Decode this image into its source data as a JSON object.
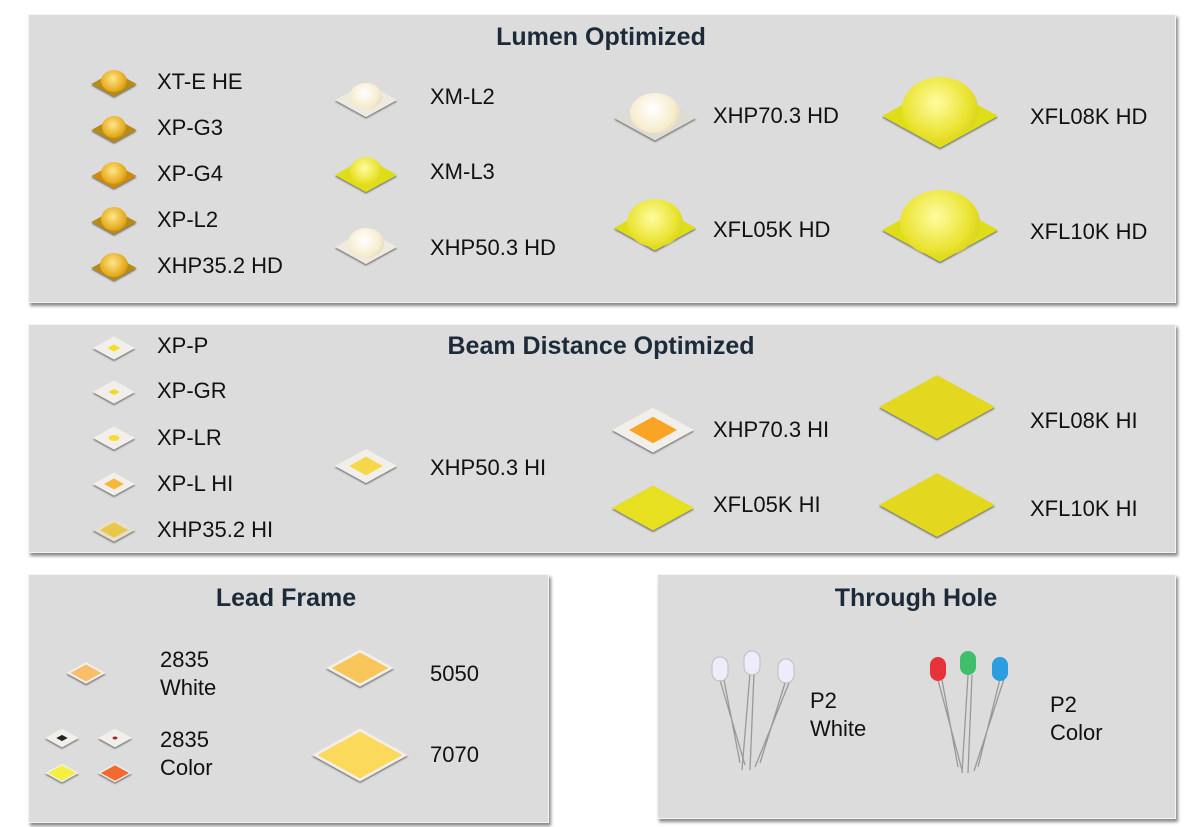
{
  "lumen": {
    "title": "Lumen Optimized",
    "items": [
      "XT-E HE",
      "XP-G3",
      "XP-G4",
      "XP-L2",
      "XHP35.2 HD",
      "XM-L2",
      "XM-L3",
      "XHP50.3 HD",
      "XHP70.3 HD",
      "XFL05K HD",
      "XFL08K HD",
      "XFL10K HD"
    ]
  },
  "beam": {
    "title": "Beam Distance Optimized",
    "items": [
      "XP-P",
      "XP-GR",
      "XP-LR",
      "XP-L HI",
      "XHP35.2 HI",
      "XHP50.3 HI",
      "XHP70.3 HI",
      "XFL05K HI",
      "XFL08K HI",
      "XFL10K HI"
    ]
  },
  "lead": {
    "title": "Lead Frame",
    "items": [
      {
        "line1": "2835",
        "line2": "White"
      },
      {
        "line1": "2835",
        "line2": "Color"
      },
      {
        "line1": "5050"
      },
      {
        "line1": "7070"
      }
    ]
  },
  "through": {
    "title": "Through Hole",
    "items": [
      {
        "line1": "P2",
        "line2": "White"
      },
      {
        "line1": "P2",
        "line2": "Color"
      }
    ]
  }
}
